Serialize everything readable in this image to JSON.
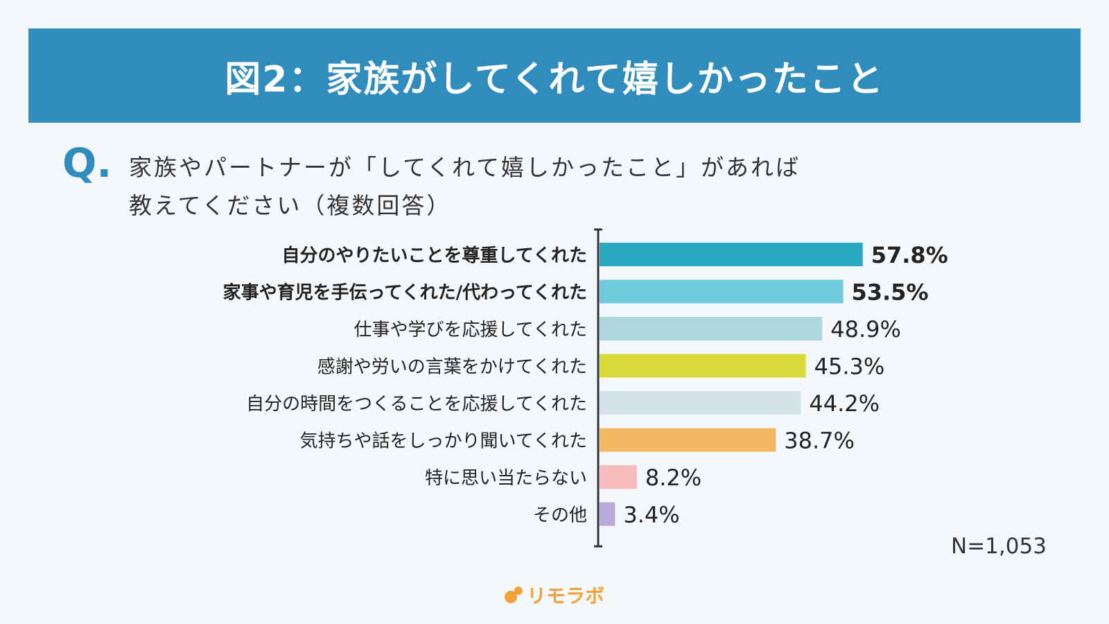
{
  "title": "図2：家族がしてくれて嬉しかったこと",
  "question": {
    "mark": "Q.",
    "line1": "家族やパートナーが「してくれて嬉しかったこと」があれば",
    "line2": "教えてください（複数回答）"
  },
  "n_label": "N=1,053",
  "logo": {
    "icon": "orange-dots-icon",
    "text": "リモラボ"
  },
  "chart_data": {
    "type": "bar",
    "orientation": "horizontal",
    "categories": [
      "自分のやりたいことを尊重してくれた",
      "家事や育児を手伝ってくれた/代わってくれた",
      "仕事や学びを応援してくれた",
      "感謝や労いの言葉をかけてくれた",
      "自分の時間をつくることを応援してくれた",
      "気持ちや話をしっかり聞いてくれた",
      "特に思い当たらない",
      "その他"
    ],
    "values": [
      57.8,
      53.5,
      48.9,
      45.3,
      44.2,
      38.7,
      8.2,
      3.4
    ],
    "value_labels": [
      "57.8%",
      "53.5%",
      "48.9%",
      "45.3%",
      "44.2%",
      "38.7%",
      "8.2%",
      "3.4%"
    ],
    "bold": [
      true,
      true,
      false,
      false,
      false,
      false,
      false,
      false
    ],
    "colors": [
      "#2aa7c1",
      "#6ecbdc",
      "#acd7df",
      "#dad93a",
      "#d2e4ea",
      "#f2b862",
      "#f8bcbc",
      "#b9a8dc"
    ],
    "xlim": [
      0,
      100
    ]
  }
}
